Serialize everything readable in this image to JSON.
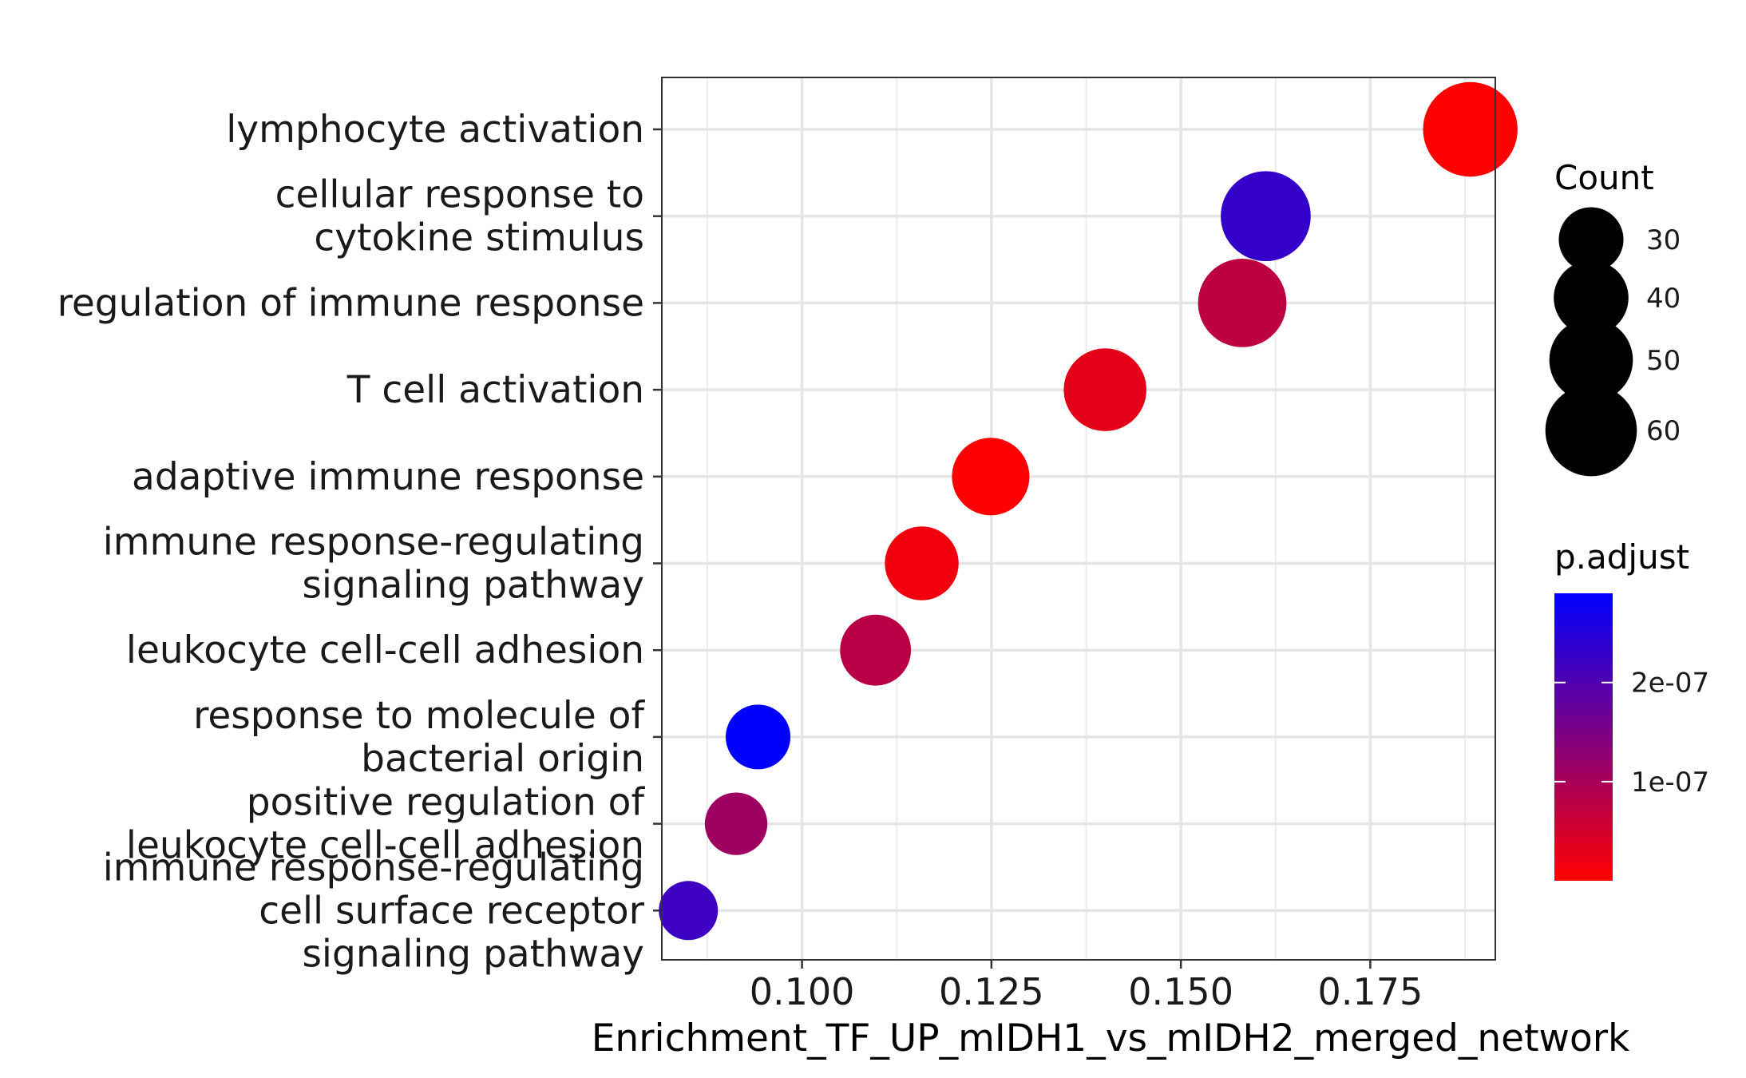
{
  "chart_data": {
    "type": "scatter",
    "xlabel": "Enrichment_TF_UP_mIDH1_vs_mIDH2_merged_network",
    "xlim": [
      0.0815,
      0.1915
    ],
    "xticks": [
      0.1,
      0.125,
      0.15,
      0.175
    ],
    "xtick_labels": [
      "0.100",
      "0.125",
      "0.150",
      "0.175"
    ],
    "grid": true,
    "legend_position": "right",
    "terms": [
      {
        "label": [
          "lymphocyte activation"
        ],
        "x": 0.1882,
        "count": 64,
        "p_adjust": 0.0
      },
      {
        "label": [
          "cellular response to",
          "cytokine stimulus"
        ],
        "x": 0.1612,
        "count": 58,
        "p_adjust": 2.3e-07
      },
      {
        "label": [
          "regulation of immune response"
        ],
        "x": 0.1581,
        "count": 56,
        "p_adjust": 7.5e-08
      },
      {
        "label": [
          "T cell activation"
        ],
        "x": 0.14,
        "count": 49,
        "p_adjust": 3e-08
      },
      {
        "label": [
          "adaptive immune response"
        ],
        "x": 0.1249,
        "count": 43,
        "p_adjust": 1e-09
      },
      {
        "label": [
          "immune response-regulating",
          "signaling pathway"
        ],
        "x": 0.1158,
        "count": 39,
        "p_adjust": 1.5e-08
      },
      {
        "label": [
          "leukocyte cell-cell adhesion"
        ],
        "x": 0.1097,
        "count": 36,
        "p_adjust": 8e-08
      },
      {
        "label": [
          "response to molecule of",
          "bacterial origin"
        ],
        "x": 0.0942,
        "count": 30,
        "p_adjust": 2.9e-07
      },
      {
        "label": [
          "positive regulation of",
          "leukocyte cell-cell adhesion"
        ],
        "x": 0.0913,
        "count": 28,
        "p_adjust": 1.1e-07
      },
      {
        "label": [
          "immune response-regulating",
          "cell surface receptor",
          "signaling pathway"
        ],
        "x": 0.085,
        "count": 25,
        "p_adjust": 2.2e-07
      }
    ],
    "size_legend": {
      "title": "Count",
      "values": [
        30,
        40,
        50,
        60
      ],
      "labels": [
        "30",
        "40",
        "50",
        "60"
      ]
    },
    "color_legend": {
      "title": "p.adjust",
      "range": [
        0.0,
        2.9e-07
      ],
      "ticks": [
        1e-07,
        2e-07
      ],
      "tick_labels": [
        "1e-07",
        "2e-07"
      ],
      "low_color": "#ff0000",
      "high_color": "#0000ff"
    }
  }
}
